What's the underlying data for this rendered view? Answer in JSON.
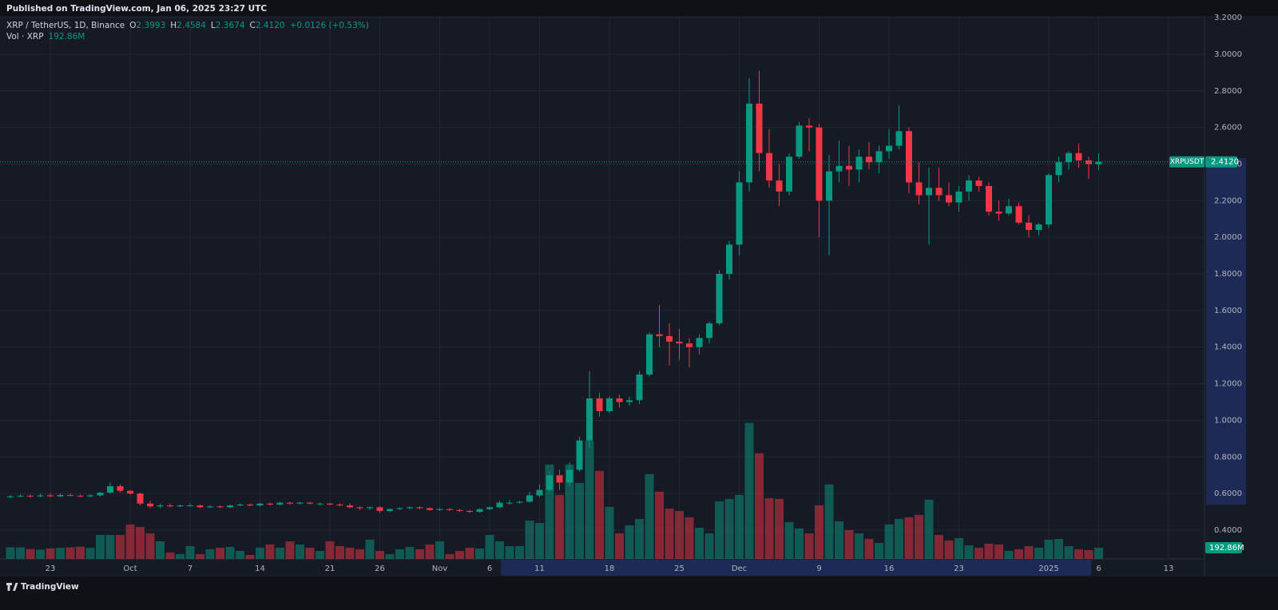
{
  "header": {
    "published": "Published on TradingView.com, Jan 06, 2025 23:27 UTC",
    "brand": "TradingView"
  },
  "legend": {
    "symbol": "XRP / TetherUS, 1D, Binance",
    "o_label": "O",
    "o": "2.3993",
    "h_label": "H",
    "h": "2.4584",
    "l_label": "L",
    "l": "2.3674",
    "c_label": "C",
    "c": "2.4120",
    "change": "+0.0126 (+0.53%)",
    "vol_title": "Vol · XRP",
    "vol": "192.86M"
  },
  "chart_data": {
    "type": "candlestick",
    "symbol_label": "XRPUSDT",
    "last_close_label": "2.4120",
    "last_volume_label": "192.86M",
    "up_color": "#089981",
    "down_color": "#f23645",
    "grid": true,
    "ylim": [
      0.243,
      3.209
    ],
    "yticks": [
      {
        "value": 0.4,
        "label": "0.4000"
      },
      {
        "value": 0.6,
        "label": "0.6000"
      },
      {
        "value": 0.8,
        "label": "0.8000"
      },
      {
        "value": 1.0,
        "label": "1.0000"
      },
      {
        "value": 1.2,
        "label": "1.2000"
      },
      {
        "value": 1.4,
        "label": "1.4000"
      },
      {
        "value": 1.6,
        "label": "1.6000"
      },
      {
        "value": 1.8,
        "label": "1.8000"
      },
      {
        "value": 2.0,
        "label": "2.0000"
      },
      {
        "value": 2.2,
        "label": "2.2000"
      },
      {
        "value": 2.4,
        "label": "2.4000"
      },
      {
        "value": 2.6,
        "label": "2.6000"
      },
      {
        "value": 2.8,
        "label": "2.8000"
      },
      {
        "value": 3.0,
        "label": "3.0000"
      },
      {
        "value": 3.2,
        "label": "3.2000"
      }
    ],
    "xlim": [
      -1.04,
      119.6
    ],
    "xticks": [
      {
        "value": 4,
        "label": "23"
      },
      {
        "value": 12,
        "label": "Oct"
      },
      {
        "value": 18,
        "label": "7"
      },
      {
        "value": 25,
        "label": "14"
      },
      {
        "value": 32,
        "label": "21"
      },
      {
        "value": 37,
        "label": "26"
      },
      {
        "value": 43,
        "label": "Nov"
      },
      {
        "value": 48,
        "label": "6"
      },
      {
        "value": 53,
        "label": "11"
      },
      {
        "value": 60,
        "label": "18"
      },
      {
        "value": 67,
        "label": "25"
      },
      {
        "value": 73,
        "label": "Dec"
      },
      {
        "value": 81,
        "label": "9"
      },
      {
        "value": 88,
        "label": "16"
      },
      {
        "value": 95,
        "label": "23"
      },
      {
        "value": 104,
        "label": "2025"
      },
      {
        "value": 109,
        "label": "6"
      },
      {
        "value": 116,
        "label": "13"
      }
    ],
    "volume_ylim": [
      0,
      2600
    ],
    "open": [
      0.58,
      0.585,
      0.588,
      0.585,
      0.59,
      0.585,
      0.592,
      0.588,
      0.585,
      0.59,
      0.605,
      0.64,
      0.615,
      0.6,
      0.545,
      0.53,
      0.535,
      0.53,
      0.535,
      0.535,
      0.525,
      0.53,
      0.525,
      0.535,
      0.54,
      0.535,
      0.545,
      0.54,
      0.55,
      0.545,
      0.55,
      0.545,
      0.545,
      0.54,
      0.535,
      0.525,
      0.52,
      0.525,
      0.505,
      0.515,
      0.52,
      0.525,
      0.52,
      0.51,
      0.515,
      0.51,
      0.505,
      0.5,
      0.515,
      0.525,
      0.55,
      0.55,
      0.555,
      0.59,
      0.62,
      0.7,
      0.66,
      0.73,
      0.89,
      1.12,
      1.05,
      1.12,
      1.1,
      1.11,
      1.25,
      1.47,
      1.46,
      1.43,
      1.42,
      1.4,
      1.45,
      1.53,
      1.8,
      1.96,
      2.3,
      2.73,
      2.46,
      2.31,
      2.25,
      2.44,
      2.61,
      2.6,
      2.2,
      2.36,
      2.39,
      2.37,
      2.44,
      2.41,
      2.47,
      2.5,
      2.58,
      2.3,
      2.23,
      2.27,
      2.23,
      2.19,
      2.25,
      2.31,
      2.28,
      2.14,
      2.13,
      2.17,
      2.08,
      2.04,
      2.07,
      2.34,
      2.41,
      2.46,
      2.42,
      2.3993
    ],
    "high": [
      0.59,
      0.595,
      0.595,
      0.6,
      0.6,
      0.6,
      0.6,
      0.595,
      0.595,
      0.61,
      0.66,
      0.65,
      0.62,
      0.605,
      0.56,
      0.545,
      0.545,
      0.54,
      0.545,
      0.54,
      0.535,
      0.535,
      0.54,
      0.545,
      0.545,
      0.55,
      0.55,
      0.555,
      0.555,
      0.555,
      0.555,
      0.55,
      0.55,
      0.545,
      0.545,
      0.53,
      0.53,
      0.53,
      0.52,
      0.525,
      0.53,
      0.53,
      0.525,
      0.52,
      0.52,
      0.515,
      0.51,
      0.52,
      0.53,
      0.56,
      0.565,
      0.56,
      0.61,
      0.65,
      0.72,
      0.73,
      0.77,
      0.91,
      1.27,
      1.15,
      1.13,
      1.14,
      1.13,
      1.27,
      1.48,
      1.63,
      1.53,
      1.5,
      1.45,
      1.47,
      1.54,
      1.82,
      1.98,
      2.36,
      2.87,
      2.91,
      2.59,
      2.4,
      2.46,
      2.63,
      2.65,
      2.62,
      2.45,
      2.53,
      2.5,
      2.48,
      2.52,
      2.5,
      2.59,
      2.72,
      2.6,
      2.41,
      2.38,
      2.38,
      2.3,
      2.28,
      2.34,
      2.33,
      2.3,
      2.2,
      2.21,
      2.19,
      2.12,
      2.08,
      2.35,
      2.44,
      2.47,
      2.51,
      2.44,
      2.4584
    ],
    "low": [
      0.575,
      0.58,
      0.578,
      0.58,
      0.58,
      0.58,
      0.585,
      0.58,
      0.58,
      0.585,
      0.6,
      0.605,
      0.595,
      0.535,
      0.52,
      0.52,
      0.525,
      0.525,
      0.53,
      0.52,
      0.52,
      0.52,
      0.52,
      0.53,
      0.53,
      0.53,
      0.535,
      0.535,
      0.54,
      0.54,
      0.54,
      0.535,
      0.535,
      0.53,
      0.52,
      0.51,
      0.51,
      0.495,
      0.5,
      0.51,
      0.515,
      0.515,
      0.505,
      0.505,
      0.505,
      0.5,
      0.495,
      0.495,
      0.51,
      0.52,
      0.54,
      0.545,
      0.55,
      0.58,
      0.61,
      0.62,
      0.64,
      0.72,
      0.85,
      1.02,
      1.04,
      1.07,
      1.08,
      1.09,
      1.24,
      1.4,
      1.3,
      1.33,
      1.29,
      1.36,
      1.42,
      1.52,
      1.77,
      1.9,
      2.25,
      2.36,
      2.27,
      2.17,
      2.23,
      2.43,
      2.47,
      2.0,
      1.9,
      2.3,
      2.28,
      2.3,
      2.37,
      2.35,
      2.43,
      2.48,
      2.24,
      2.18,
      1.96,
      2.2,
      2.17,
      2.14,
      2.2,
      2.25,
      2.12,
      2.09,
      2.12,
      2.07,
      2.0,
      2.01,
      2.05,
      2.3,
      2.37,
      2.38,
      2.32,
      2.3674
    ],
    "close": [
      0.585,
      0.588,
      0.585,
      0.59,
      0.585,
      0.592,
      0.588,
      0.585,
      0.59,
      0.605,
      0.64,
      0.615,
      0.6,
      0.545,
      0.53,
      0.535,
      0.53,
      0.535,
      0.535,
      0.525,
      0.53,
      0.525,
      0.535,
      0.54,
      0.535,
      0.545,
      0.54,
      0.55,
      0.545,
      0.55,
      0.545,
      0.545,
      0.54,
      0.535,
      0.525,
      0.52,
      0.525,
      0.505,
      0.515,
      0.52,
      0.525,
      0.52,
      0.51,
      0.515,
      0.51,
      0.505,
      0.5,
      0.515,
      0.525,
      0.55,
      0.55,
      0.555,
      0.59,
      0.62,
      0.7,
      0.66,
      0.73,
      0.89,
      1.12,
      1.05,
      1.12,
      1.1,
      1.11,
      1.25,
      1.47,
      1.46,
      1.43,
      1.42,
      1.4,
      1.45,
      1.53,
      1.8,
      1.96,
      2.3,
      2.73,
      2.46,
      2.31,
      2.25,
      2.44,
      2.61,
      2.6,
      2.2,
      2.36,
      2.39,
      2.37,
      2.44,
      2.41,
      2.47,
      2.5,
      2.58,
      2.3,
      2.23,
      2.27,
      2.23,
      2.19,
      2.25,
      2.31,
      2.28,
      2.14,
      2.13,
      2.17,
      2.08,
      2.04,
      2.07,
      2.34,
      2.41,
      2.46,
      2.42,
      2.4,
      2.412
    ],
    "volume": [
      200,
      200,
      170,
      160,
      180,
      190,
      200,
      210,
      190,
      413,
      413,
      413,
      593,
      551,
      441,
      303,
      110,
      83,
      220,
      83,
      165,
      193,
      207,
      138,
      69,
      193,
      248,
      193,
      303,
      248,
      193,
      138,
      303,
      220,
      193,
      165,
      331,
      138,
      83,
      165,
      207,
      165,
      248,
      303,
      83,
      138,
      193,
      179,
      413,
      303,
      220,
      220,
      661,
      620,
      1626,
      1102,
      1626,
      1309,
      2039,
      1516,
      896,
      441,
      579,
      689,
      1461,
      1158,
      868,
      827,
      717,
      537,
      441,
      992,
      1034,
      1102,
      2343,
      1819,
      1047,
      1034,
      634,
      524,
      441,
      923,
      1282,
      648,
      496,
      441,
      345,
      276,
      593,
      689,
      717,
      758,
      1020,
      413,
      317,
      358,
      234,
      193,
      262,
      248,
      138,
      165,
      220,
      193,
      331,
      345,
      220,
      165,
      152,
      192.86
    ]
  }
}
